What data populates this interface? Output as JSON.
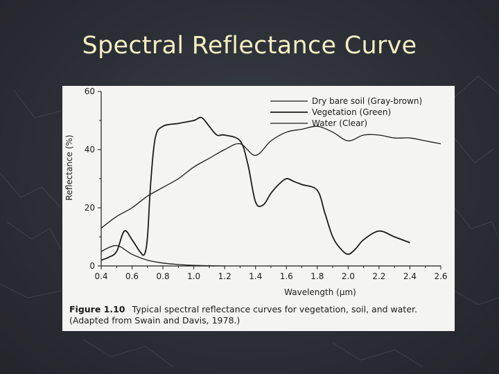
{
  "slide": {
    "title": "Spectral Reflectance Curve"
  },
  "figure": {
    "caption_label": "Figure 1.10",
    "caption_text": "Typical spectral reflectance curves for vegetation, soil, and water.",
    "caption_source": "(Adapted from Swain and Davis, 1978.)"
  },
  "colors": {
    "slide_background": "#2d3038",
    "title_text": "#f3efc2",
    "figure_background": "#f4f4f2",
    "ink": "#1a1a1a"
  },
  "chart_data": {
    "type": "line",
    "xlabel": "Wavelength (μm)",
    "ylabel": "Reflectance (%)",
    "xlim": [
      0.4,
      2.6
    ],
    "ylim": [
      0,
      60
    ],
    "xticks": [
      0.4,
      0.6,
      0.8,
      1.0,
      1.2,
      1.4,
      1.6,
      1.8,
      2.0,
      2.2,
      2.4,
      2.6
    ],
    "xtick_labels": [
      "0.4",
      "0.6",
      "0.8",
      "1.0",
      "1.2",
      "1.4",
      "1.6",
      "1.8",
      "2.0",
      "2.2",
      "2.4",
      "2.6"
    ],
    "yticks": [
      0,
      20,
      40,
      60
    ],
    "ytick_labels": [
      "0",
      "20",
      "40",
      "60"
    ],
    "grid": false,
    "legend_position": "top-right",
    "series": [
      {
        "name": "Dry bare soil (Gray-brown)",
        "style": "solid",
        "x": [
          0.4,
          0.5,
          0.6,
          0.7,
          0.8,
          0.9,
          1.0,
          1.1,
          1.2,
          1.3,
          1.4,
          1.5,
          1.6,
          1.7,
          1.8,
          1.9,
          2.0,
          2.1,
          2.2,
          2.3,
          2.4,
          2.5,
          2.6
        ],
        "y": [
          13,
          17,
          20,
          24,
          27,
          30,
          34,
          37,
          40,
          42,
          38,
          43,
          46,
          47,
          48,
          46,
          43,
          45,
          45,
          44,
          44,
          43,
          42
        ]
      },
      {
        "name": "Vegetation (Green)",
        "style": "solid",
        "x": [
          0.4,
          0.45,
          0.5,
          0.55,
          0.6,
          0.65,
          0.68,
          0.7,
          0.72,
          0.75,
          0.8,
          0.9,
          1.0,
          1.05,
          1.1,
          1.15,
          1.2,
          1.3,
          1.35,
          1.4,
          1.45,
          1.5,
          1.55,
          1.6,
          1.65,
          1.7,
          1.8,
          1.85,
          1.9,
          1.95,
          2.0,
          2.05,
          2.1,
          2.2,
          2.3,
          2.4
        ],
        "y": [
          2,
          3,
          5,
          12,
          9,
          5,
          4,
          10,
          28,
          44,
          48,
          49,
          50,
          51,
          48,
          45,
          45,
          43,
          35,
          22,
          21,
          25,
          28,
          30,
          29,
          28,
          26,
          18,
          10,
          6,
          4,
          6,
          9,
          12,
          10,
          8
        ]
      },
      {
        "name": "Water (Clear)",
        "style": "solid",
        "x": [
          0.4,
          0.5,
          0.6,
          0.7,
          0.8,
          0.9,
          1.0,
          1.2
        ],
        "y": [
          5,
          7,
          4,
          2,
          1,
          0.5,
          0.2,
          0
        ]
      }
    ]
  }
}
